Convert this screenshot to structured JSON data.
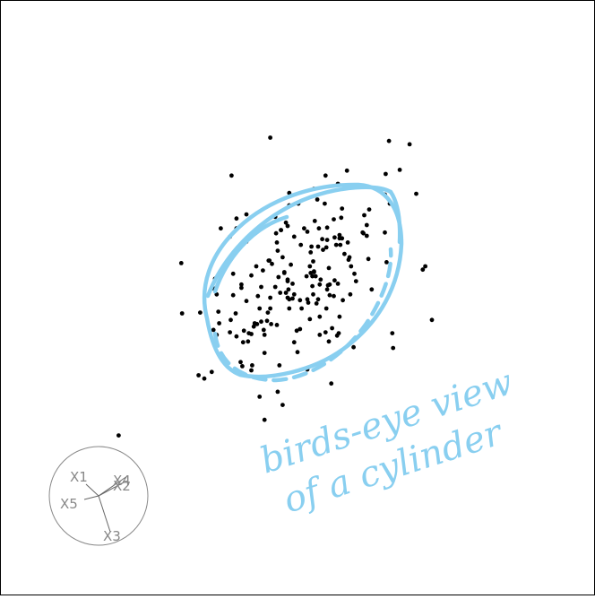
{
  "chart_data": {
    "type": "scatter",
    "title": "",
    "xlabel": "",
    "ylabel": "",
    "grid": false,
    "xlim": [
      -3.2,
      3.2
    ],
    "ylim": [
      -3.2,
      3.2
    ],
    "point_color": "#000000",
    "x": [
      -0.68,
      0.44,
      0.53,
      -0.16,
      0.36,
      0.2,
      -0.1,
      -0.62,
      0.24,
      -0.2,
      -0.82,
      0.27,
      0.37,
      0.36,
      -0.5,
      -0.93,
      -0.74,
      0.6,
      0.45,
      -0.56,
      -0.12,
      -0.18,
      -0.12,
      0.03,
      -0.1,
      0.81,
      -0.96,
      -0.32,
      -0.1,
      0.04,
      0.03,
      -0.12,
      0.16,
      0.22,
      -0.4,
      1.06,
      0.36,
      0.38,
      0.35,
      0.12,
      -1.4,
      -0.06,
      0.49,
      -1.01,
      0.12,
      1.36,
      0.69,
      -0.62,
      0.11,
      0.21,
      -0.27,
      -0.75,
      1.16,
      0.62,
      1.55,
      0.28,
      -0.1,
      -0.16,
      0.34,
      1.08,
      0.41,
      -0.56,
      -0.34,
      1.07,
      0.63,
      0.25,
      -0.04,
      0.52,
      -1.0,
      -0.44,
      -1.02,
      -0.69,
      -1.18,
      -0.46,
      -0.22,
      -1.41,
      0.2,
      0.48,
      0.35,
      0.8,
      0.12,
      -0.35,
      0.39,
      -1.04,
      -0.06,
      0.54,
      0.27,
      -0.31,
      -0.49,
      -0.26,
      1.11,
      -0.14,
      -0.52,
      0.2,
      -0.11,
      -0.36,
      -0.33,
      0.86,
      0.27,
      0.84,
      1.15,
      0.49,
      0.5,
      1.24,
      -0.33,
      0.51,
      0.19,
      1.52,
      -0.42,
      0.23,
      -0.68,
      0.18,
      0.25,
      0.51,
      0.26,
      0.68,
      0.57,
      0.15,
      0.31,
      -0.4,
      -1.2,
      0.0,
      -0.37,
      0.84,
      -0.46,
      -0.74,
      -0.81,
      0.47,
      0.17,
      0.71,
      0.54,
      -0.25,
      -0.48,
      1.06,
      -0.6,
      1.12,
      -0.74,
      0.64,
      -0.08,
      -0.24,
      0.34,
      -0.98,
      -0.53,
      0.45,
      0.61,
      0.01,
      -0.2,
      0.08,
      0.13,
      0.19,
      -0.55,
      -0.44,
      -0.59,
      0.65,
      0.38,
      -0.67,
      -0.33,
      0.05,
      0.9,
      -0.27,
      -0.23,
      0.3,
      -0.04,
      -0.18,
      -0.21,
      -0.4,
      -0.12,
      -0.62,
      0.18,
      -0.01,
      -1.13,
      0.16,
      0.33,
      -0.25,
      -0.14,
      0.87,
      0.79,
      -0.56,
      -0.95,
      0.42,
      -0.04,
      1.44,
      -0.8,
      0.39,
      -0.78,
      -0.78,
      -0.82,
      0.15,
      -0.98,
      1.63,
      0.55,
      -0.24,
      -0.65,
      0.44,
      0.51,
      -0.41,
      -0.66,
      -2.17
    ],
    "y": [
      0.12,
      0.95,
      0.97,
      0.31,
      0.7,
      0.31,
      -0.02,
      0.68,
      1.19,
      0.82,
      0.74,
      0.16,
      0.15,
      0.1,
      0.38,
      0.84,
      0.96,
      1.54,
      0.73,
      -0.44,
      0.22,
      -1.3,
      0.2,
      -0.03,
      -0.13,
      1.0,
      -0.17,
      -0.32,
      1.12,
      0.64,
      -0.38,
      0.0,
      0.55,
      0.26,
      -0.67,
      1.25,
      0.85,
      0.36,
      -0.13,
      -0.02,
      -0.19,
      -0.01,
      1.38,
      0.11,
      0.8,
      1.86,
      0.29,
      -0.04,
      0.26,
      0.93,
      0.98,
      -0.19,
      -0.61,
      0.46,
      0.38,
      0.22,
      1.27,
      0.3,
      1.48,
      0.43,
      -1.04,
      0.27,
      0.45,
      1.5,
      0.49,
      0.62,
      0.04,
      0.64,
      0.23,
      -0.29,
      -0.39,
      -0.78,
      -0.18,
      -1.2,
      -0.82,
      0.42,
      1.32,
      -0.46,
      0.61,
      0.78,
      -0.87,
      0.45,
      0.16,
      -0.9,
      0.17,
      1.08,
      -0.23,
      0.41,
      -0.32,
      0.78,
      1.9,
      0.91,
      -0.31,
      0.32,
      0.1,
      -0.18,
      1.94,
      0.47,
      -0.45,
      0.88,
      -0.43,
      0.17,
      -0.43,
      1.55,
      0.0,
      0.76,
      0.44,
      0.34,
      0.33,
      -0.07,
      0.16,
      0.14,
      -0.02,
      0.72,
      0.84,
      -0.6,
      0.53,
      -0.26,
      0.58,
      -1.48,
      -0.94,
      -0.66,
      -0.28,
      0.75,
      -0.13,
      -0.47,
      -0.27,
      0.64,
      0.62,
      0.2,
      0.72,
      -0.33,
      0.02,
      0.79,
      -0.53,
      1.14,
      0.84,
      0.04,
      0.4,
      -1.14,
      -0.42,
      0.04,
      -0.35,
      0.21,
      0.67,
      1.14,
      0.82,
      0.84,
      -0.06,
      0.04,
      -0.82,
      0.13,
      -0.43,
      0.38,
      -0.53,
      -0.83,
      -0.13,
      -0.13,
      0.1,
      0.13,
      0.25,
      0.71,
      -0.54,
      0.49,
      0.06,
      -0.45,
      0.87,
      1.01,
      0.26,
      -0.4,
      -0.98,
      0.3,
      1.14,
      0.67,
      0.06,
      1.07,
      0.79,
      -0.88,
      -0.31,
      -0.37,
      0.74,
      1.26,
      1.48,
      0.03,
      0.03,
      0.29,
      -0.42,
      0.38,
      -0.45,
      -0.27,
      -0.03,
      0.57,
      -0.4,
      0.02,
      -0.23,
      -0.39,
      -0.54,
      -1.67
    ],
    "axes_guide": {
      "labels": [
        "X1",
        "X4",
        "X2",
        "X5",
        "X3"
      ],
      "label_color": "#888888"
    }
  },
  "annotation": {
    "line1": "birds-eye view",
    "line2": "of a cylinder",
    "color": "#89cff0"
  }
}
